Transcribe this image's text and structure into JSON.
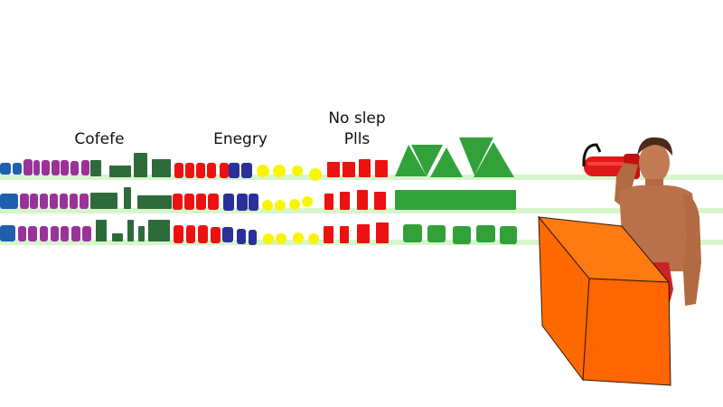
{
  "labels": {
    "coffee": "Cofefe",
    "energy": "Enegry",
    "pills_line1": "No slep",
    "pills_line2": "Plls"
  },
  "colors": {
    "track": "#d7f5cc",
    "blue": "#1f5fb0",
    "purple": "#993399",
    "dark_green": "#2e6b3a",
    "red": "#ee1111",
    "navy": "#2b2f99",
    "yellow": "#f6f600",
    "bright_green": "#33a13a",
    "orange": "#ff6a00",
    "skin": "#b9714b",
    "shorts": "#cc2222"
  },
  "icons": {
    "person": "lifeguard-person",
    "rescue_buoy": "rescue-buoy",
    "box": "orange-box",
    "triangle": "green-triangle"
  }
}
